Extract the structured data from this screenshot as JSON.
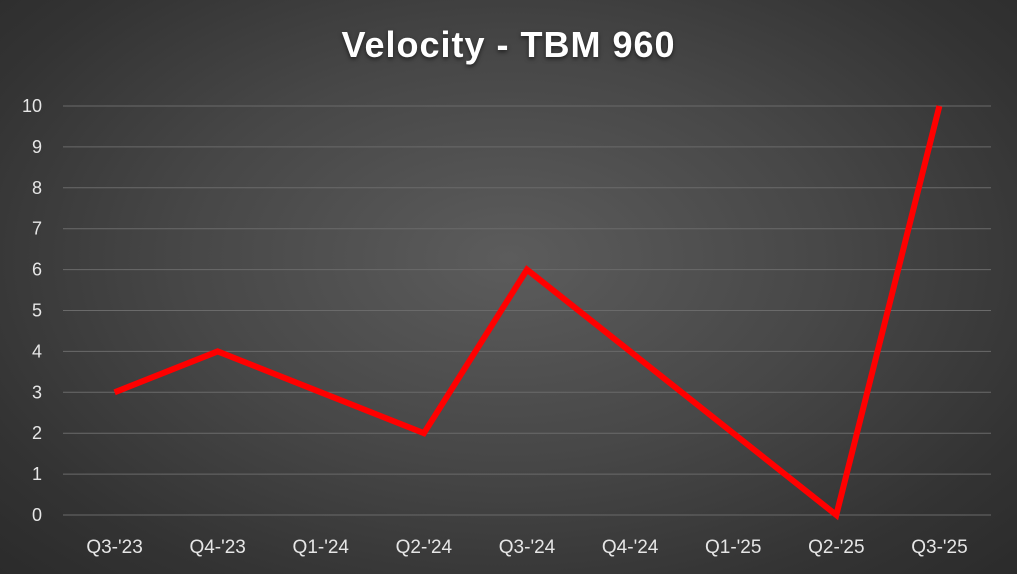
{
  "chart_data": {
    "type": "line",
    "title": "Velocity - TBM 960",
    "xlabel": "",
    "ylabel": "",
    "categories": [
      "Q3-'23",
      "Q4-'23",
      "Q1-'24",
      "Q2-'24",
      "Q3-'24",
      "Q4-'24",
      "Q1-'25",
      "Q2-'25",
      "Q3-'25"
    ],
    "series": [
      {
        "values": [
          3,
          4,
          3,
          2,
          6,
          4,
          2,
          0,
          10
        ],
        "color": "#ff0000"
      }
    ],
    "ylim": [
      0,
      10
    ],
    "yticks": [
      0,
      1,
      2,
      3,
      4,
      5,
      6,
      7,
      8,
      9,
      10
    ],
    "grid": true,
    "legend": "none"
  },
  "colors": {
    "background": "#3f3f3f",
    "gridline": "#6a6a6a",
    "text": "#e6e6e6",
    "line": "#ff0000"
  }
}
